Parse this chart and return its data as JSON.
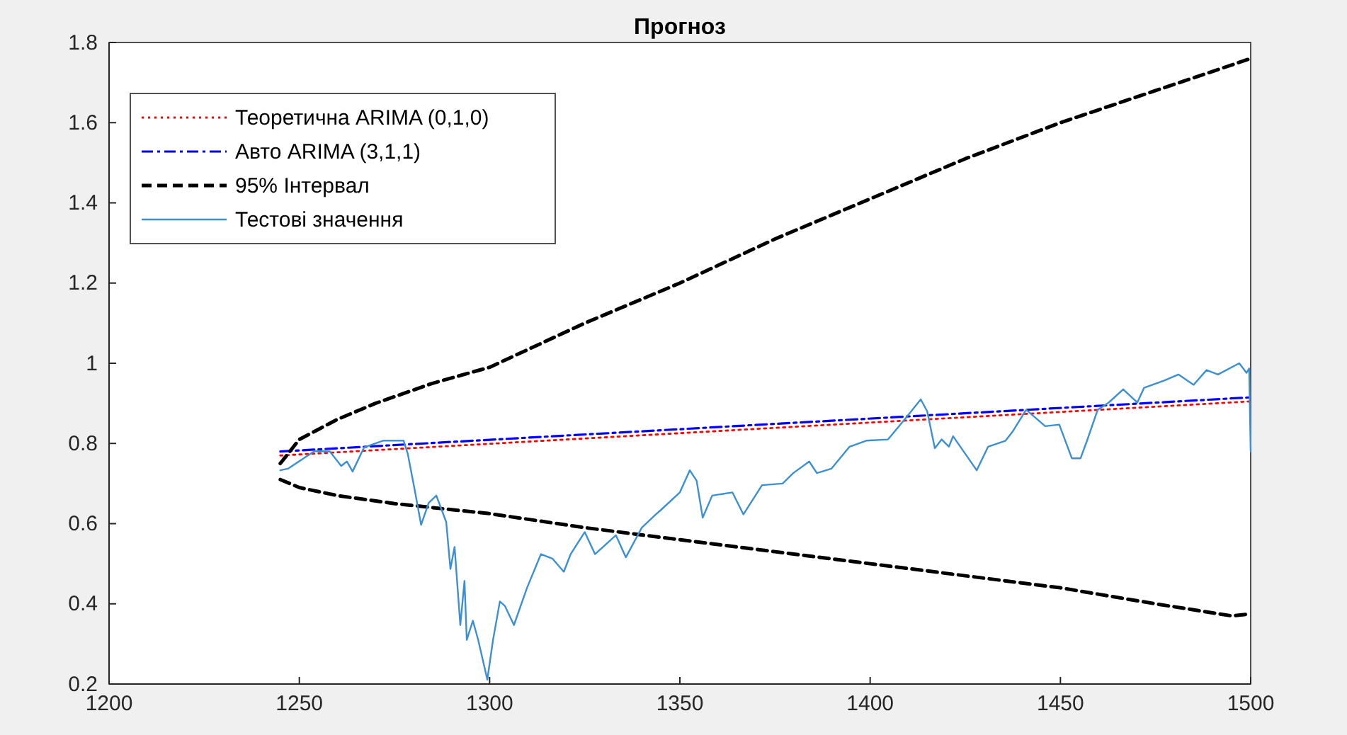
{
  "chart_data": {
    "type": "line",
    "title": "Прогноз",
    "xlim": [
      1200,
      1500
    ],
    "xticks": [
      1200,
      1250,
      1300,
      1350,
      1400,
      1450,
      1500
    ],
    "ylim": [
      0.2,
      1.8
    ],
    "yticks": [
      0.2,
      0.4,
      0.6,
      0.8,
      1,
      1.2,
      1.4,
      1.6,
      1.8
    ],
    "legend": "top left",
    "grid": false,
    "marker": "none",
    "series": [
      {
        "name": "Теоретична ARIMA (0,1,0)",
        "color": "#ff0000",
        "line_style": "dotted",
        "x": [
          1245,
          1500
        ],
        "values": [
          0.77,
          0.905
        ]
      },
      {
        "name": "Авто ARIMA (3,1,1)",
        "color": "#0000ff",
        "line_style": "dashdot",
        "x": [
          1245,
          1500
        ],
        "values": [
          0.78,
          0.915
        ]
      },
      {
        "name": "95% Інтервал",
        "color": "#000000",
        "line_style": "dashed",
        "x": [
          1245,
          1250,
          1260,
          1270,
          1285,
          1300,
          1325,
          1350,
          1375,
          1400,
          1425,
          1450,
          1475,
          1500
        ],
        "values": [
          0.75,
          0.81,
          0.86,
          0.9,
          0.95,
          0.99,
          1.1,
          1.2,
          1.31,
          1.41,
          1.51,
          1.6,
          1.68,
          1.76
        ]
      },
      {
        "color": "#000000",
        "line_style": "dashed",
        "x": [
          1245,
          1250,
          1260,
          1275,
          1300,
          1325,
          1350,
          1375,
          1400,
          1425,
          1450,
          1475,
          1495,
          1500
        ],
        "values": [
          0.71,
          0.69,
          0.67,
          0.65,
          0.625,
          0.59,
          0.56,
          0.53,
          0.5,
          0.47,
          0.44,
          0.4,
          0.37,
          0.375
        ]
      },
      {
        "name": "Тестові значення",
        "color": "#3d8fd4",
        "line_style": "solid",
        "x": [
          1245,
          1247,
          1254,
          1258,
          1261,
          1262.5,
          1264,
          1267,
          1272,
          1277.4,
          1278.5,
          1280.4,
          1282,
          1284,
          1286,
          1288.6,
          1289.7,
          1290.8,
          1292.3,
          1293.4,
          1294,
          1295.6,
          1297,
          1299.4,
          1300.9,
          1302.7,
          1304,
          1306.4,
          1309.8,
          1313.5,
          1316.5,
          1319.5,
          1321.3,
          1325,
          1327.7,
          1333.2,
          1335.8,
          1340,
          1343.7,
          1345,
          1350,
          1352.6,
          1354.4,
          1356,
          1358.5,
          1363.8,
          1366.7,
          1371.6,
          1377,
          1379.8,
          1384,
          1386,
          1389.8,
          1394.6,
          1399,
          1404.7,
          1409.5,
          1413.3,
          1415,
          1417,
          1418.8,
          1420.7,
          1421.8,
          1428,
          1431,
          1435.6,
          1437.4,
          1441,
          1446,
          1449.7,
          1453,
          1455.3,
          1457,
          1459.8,
          1462.7,
          1466.5,
          1470.2,
          1472,
          1477.3,
          1481,
          1485,
          1488.4,
          1491.4,
          1497,
          1498.9,
          1499.6,
          1500
        ],
        "values": [
          0.733,
          0.737,
          0.781,
          0.78,
          0.744,
          0.755,
          0.73,
          0.79,
          0.807,
          0.807,
          0.774,
          0.68,
          0.597,
          0.652,
          0.67,
          0.604,
          0.487,
          0.542,
          0.347,
          0.457,
          0.31,
          0.358,
          0.31,
          0.211,
          0.31,
          0.406,
          0.395,
          0.347,
          0.439,
          0.524,
          0.513,
          0.48,
          0.524,
          0.579,
          0.524,
          0.571,
          0.516,
          0.59,
          0.623,
          0.634,
          0.678,
          0.733,
          0.707,
          0.615,
          0.67,
          0.678,
          0.623,
          0.696,
          0.7,
          0.726,
          0.755,
          0.726,
          0.737,
          0.792,
          0.807,
          0.81,
          0.865,
          0.91,
          0.88,
          0.788,
          0.81,
          0.792,
          0.818,
          0.733,
          0.792,
          0.807,
          0.829,
          0.884,
          0.843,
          0.847,
          0.763,
          0.763,
          0.807,
          0.884,
          0.902,
          0.935,
          0.902,
          0.939,
          0.957,
          0.972,
          0.946,
          0.983,
          0.972,
          1.0,
          0.976,
          0.987,
          0.78
        ]
      }
    ]
  }
}
